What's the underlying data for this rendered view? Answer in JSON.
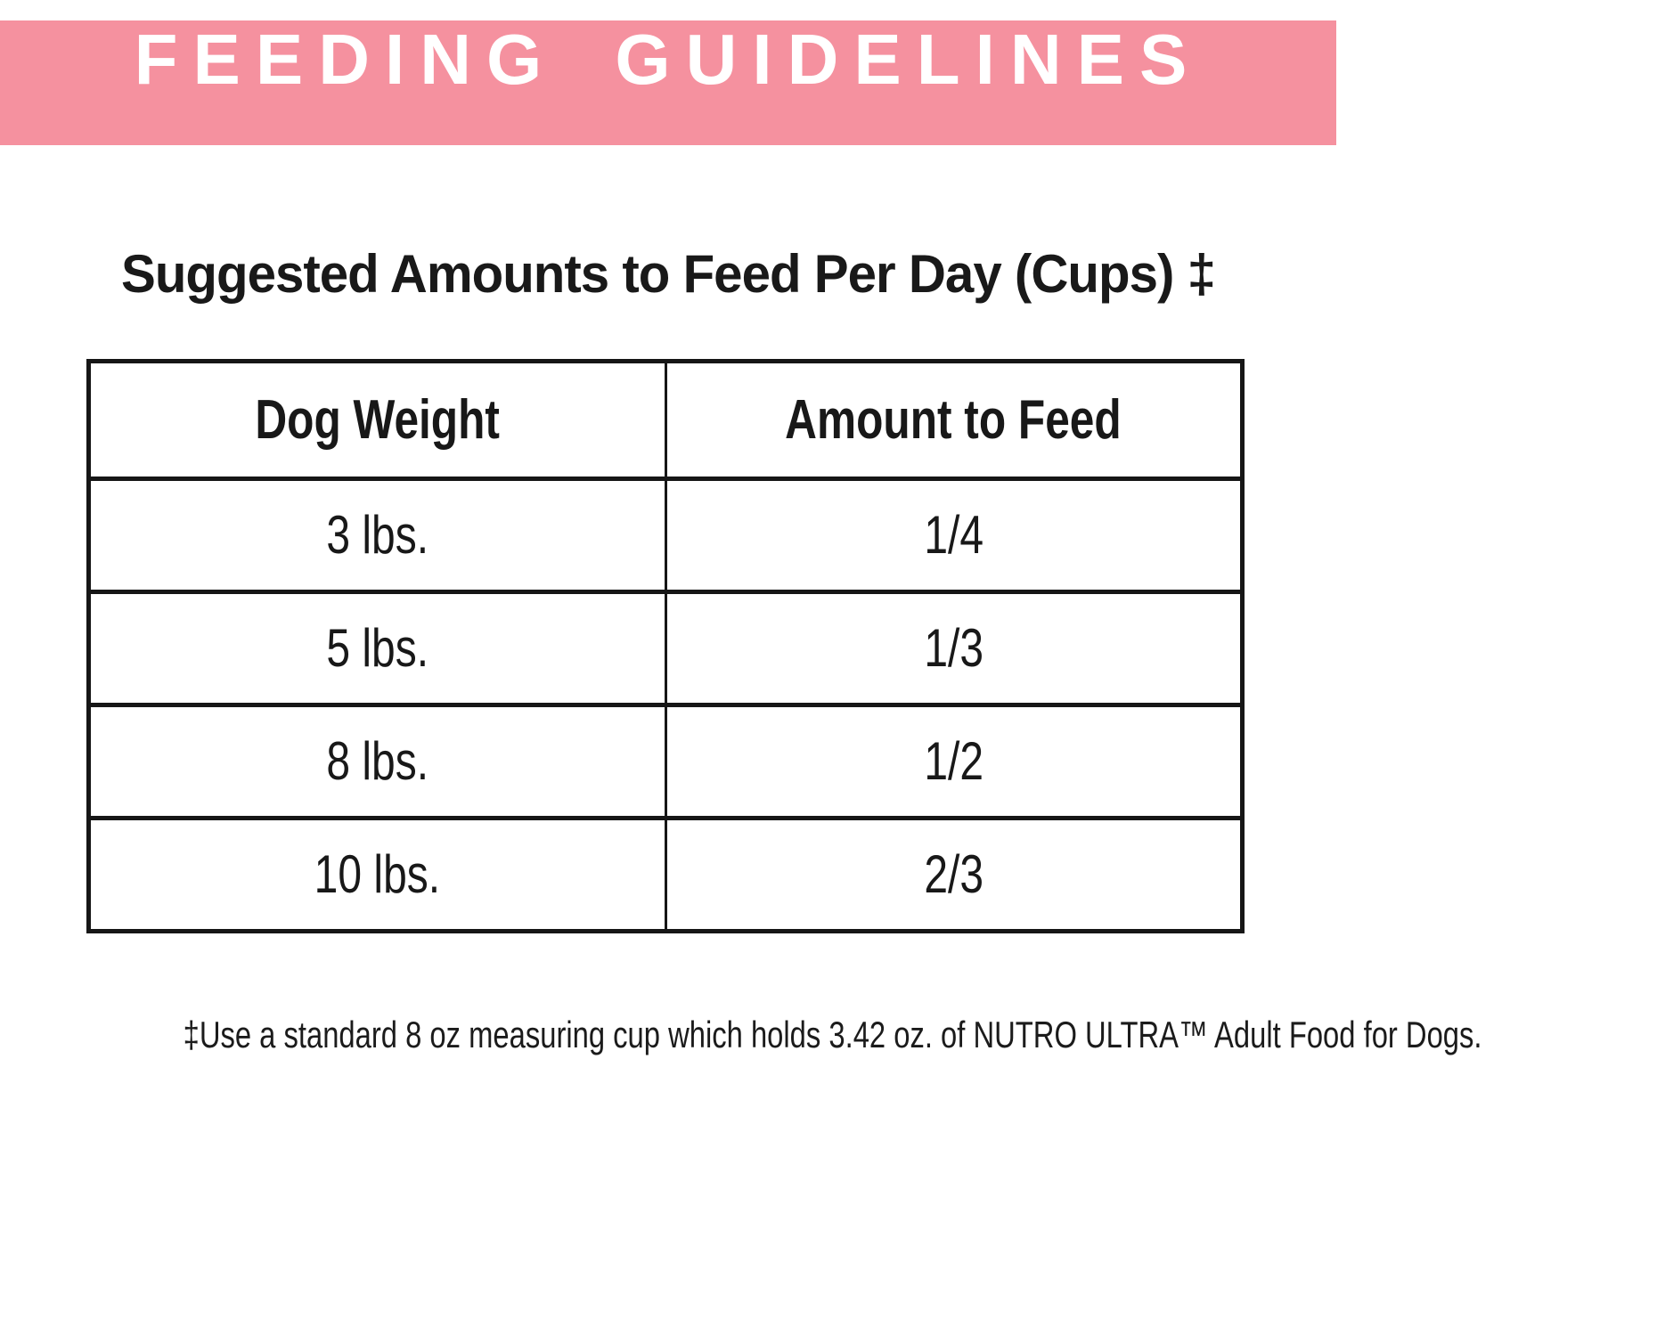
{
  "banner": {
    "title": "FEEDING GUIDELINES",
    "background_color": "#F5919F",
    "text_color": "#FFFFFF"
  },
  "heading": {
    "title": "Suggested Amounts to Feed Per Day (Cups) ‡"
  },
  "table": {
    "columns": [
      "Dog Weight",
      "Amount to Feed"
    ],
    "rows": [
      {
        "weight": "3 lbs.",
        "amount": "1/4"
      },
      {
        "weight": "5 lbs.",
        "amount": "1/3"
      },
      {
        "weight": "8 lbs.",
        "amount": "1/2"
      },
      {
        "weight": "10 lbs.",
        "amount": "2/3"
      }
    ],
    "border_color": "#161616"
  },
  "footnote": {
    "text": "‡Use a standard 8 oz measuring cup which holds 3.42 oz. of NUTRO ULTRA™ Adult Food for Dogs."
  }
}
